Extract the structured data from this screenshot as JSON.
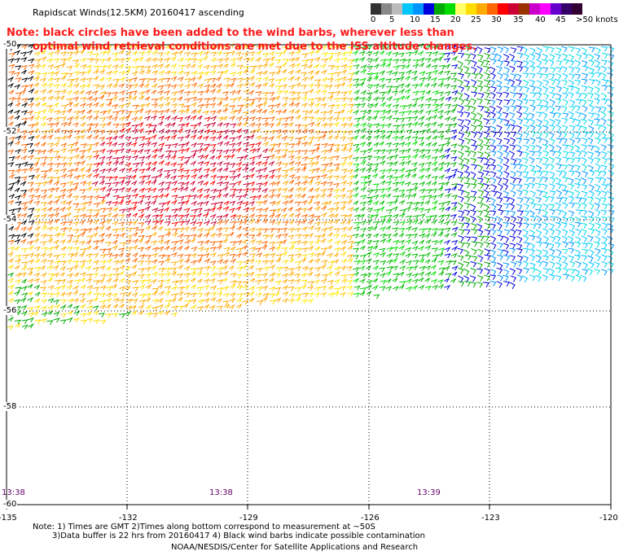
{
  "title": "Rapidscat Winds(12.5KM) 20160417 ascending",
  "note_line1": "Note: black circles have been added to the wind barbs, wherever less than",
  "note_line2": "optimal wind retrieval conditions are met due to the ISS altitude changes.",
  "legend": {
    "labels": [
      "0",
      "5",
      "10",
      "15",
      "20",
      "25",
      "30",
      "35",
      "40",
      "45",
      ">50 knots"
    ],
    "colors": [
      "#333333",
      "#888888",
      "#bbbbbb",
      "#00c8ff",
      "#0096ff",
      "#0000dd",
      "#00aa00",
      "#00dd00",
      "#ffff66",
      "#ffdd00",
      "#ffaa00",
      "#ff6600",
      "#ff0000",
      "#cc0033",
      "#993300",
      "#cc00cc",
      "#ff00ff",
      "#6600cc",
      "#330066",
      "#330033"
    ]
  },
  "lat_labels": [
    "-50",
    "-52",
    "-54",
    "-56",
    "-58",
    "-60"
  ],
  "lon_labels": [
    "-135",
    "-132",
    "-129",
    "-126",
    "-123",
    "-120"
  ],
  "times": [
    "13:38",
    "13:38",
    "13:39"
  ],
  "footnote_line1": "Note: 1) Times are GMT 2)Times along bottom correspond to measurement at ~50S",
  "footnote_line2": "3)Data buffer is 22 hrs from 20160417 4) Black wind barbs indicate possible contamination",
  "credit": "NOAA/NESDIS/Center for Satellite Applications and Research"
}
